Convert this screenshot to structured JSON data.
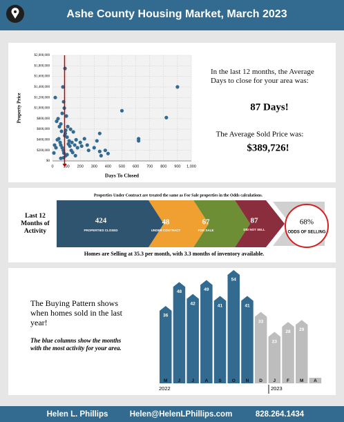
{
  "header": {
    "title": "Ashe County Housing Market, March 2023"
  },
  "summary": {
    "days_text": "In the last 12 months, the Average Days to close for your area was:",
    "days_value": "87 Days!",
    "price_text": "The Average Sold Price was:",
    "price_value": "$389,726!"
  },
  "activity": {
    "note": "Properties Under Contract are treated the same as For Sale properties in the Odds calculations.",
    "label": "Last 12 Months of Activity",
    "steps": [
      {
        "value": 424,
        "label": "PROPERTIES CLOSED"
      },
      {
        "value": 48,
        "label": "UNDER CONTRACT"
      },
      {
        "value": 67,
        "label": "FOR SALE"
      },
      {
        "value": 87,
        "label": "DID NOT SELL"
      }
    ],
    "odds": {
      "value": "68%",
      "label": "ODDS OF SELLING"
    },
    "footer": "Homes are Selling at 35.3 per month, with 3.3 months of inventory available."
  },
  "pattern": {
    "text": "The Buying Pattern shows when homes sold in the last year!",
    "note": "The blue columns show the months with the most activity for your area.",
    "years": [
      "2022",
      "2023"
    ]
  },
  "footer": {
    "name": "Helen L. Phillips",
    "email": "Helen@HelenLPhillips.com",
    "phone": "828.264.1434"
  },
  "chart_data": [
    {
      "type": "scatter",
      "xlabel": "Days To Closed",
      "ylabel": "Property Price",
      "color": "#336a8f",
      "vline": 87,
      "vline_color": "#c00000",
      "grid": true,
      "x": [
        90,
        75,
        80,
        85,
        100,
        70,
        60,
        110,
        95,
        130,
        150,
        170,
        200,
        230,
        250,
        300,
        320,
        340,
        380,
        400,
        500,
        620,
        620,
        820,
        900,
        40,
        50,
        65,
        88,
        92,
        105,
        120,
        140,
        160,
        180,
        210,
        260,
        340,
        350,
        45,
        55,
        60,
        70,
        78,
        82,
        95,
        115,
        125,
        135,
        20,
        30,
        35,
        15,
        25,
        10,
        60,
        80,
        105,
        145,
        165
      ],
      "values": [
        1750000,
        1400000,
        1120000,
        1000000,
        850000,
        900000,
        700000,
        650000,
        580000,
        600000,
        550000,
        400000,
        350000,
        420000,
        300000,
        250000,
        380000,
        520000,
        200000,
        140000,
        950000,
        420000,
        380000,
        820000,
        1400000,
        800000,
        650000,
        560000,
        480000,
        520000,
        450000,
        380000,
        350000,
        300000,
        250000,
        280000,
        200000,
        180000,
        100000,
        420000,
        350000,
        300000,
        250000,
        200000,
        150000,
        100000,
        320000,
        280000,
        200000,
        1200000,
        750000,
        400000,
        300000,
        250000,
        150000,
        50000,
        60000,
        120000,
        160000,
        100000
      ],
      "xlim": [
        0,
        1000
      ],
      "xticks": [
        0,
        100,
        200,
        300,
        400,
        500,
        600,
        700,
        800,
        900,
        {
          "value": 1000,
          "label": "1,000"
        }
      ],
      "ylim": [
        0,
        2000000
      ],
      "yticks": [
        {
          "value": 0,
          "label": "$0"
        },
        {
          "value": 200000,
          "label": "$200,000"
        },
        {
          "value": 400000,
          "label": "$400,000"
        },
        {
          "value": 600000,
          "label": "$600,000"
        },
        {
          "value": 800000,
          "label": "$800,000"
        },
        {
          "value": 1000000,
          "label": "$1,000,000"
        },
        {
          "value": 1200000,
          "label": "$1,200,000"
        },
        {
          "value": 1400000,
          "label": "$1,400,000"
        },
        {
          "value": 1600000,
          "label": "$1,600,000"
        },
        {
          "value": 1800000,
          "label": "$1,800,000"
        },
        {
          "value": 2000000,
          "label": "$2,000,000"
        }
      ]
    },
    {
      "type": "bar",
      "categories": [
        "M",
        "J",
        "J",
        "A",
        "S",
        "O",
        "N",
        "D",
        "J",
        "F",
        "M",
        "A"
      ],
      "values": [
        36,
        48,
        42,
        49,
        41,
        54,
        41,
        33,
        23,
        28,
        29,
        null
      ],
      "colors": [
        "#336a8f",
        "#336a8f",
        "#336a8f",
        "#336a8f",
        "#336a8f",
        "#336a8f",
        "#336a8f",
        "#bdbdbd",
        "#bdbdbd",
        "#bdbdbd",
        "#bdbdbd",
        "#bdbdbd"
      ]
    }
  ]
}
